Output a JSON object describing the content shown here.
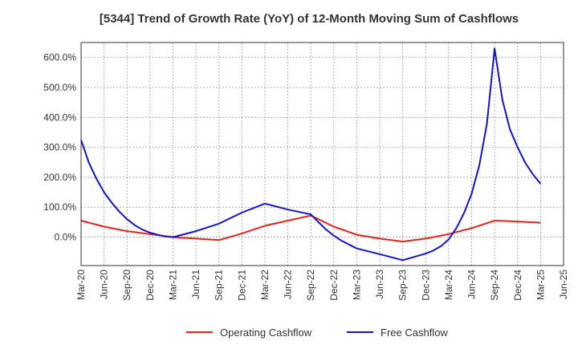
{
  "chart_data": {
    "type": "line",
    "title": "[5344]  Trend of Growth Rate (YoY) of 12-Month Moving Sum of Cashflows",
    "xlabel": "",
    "ylabel": "",
    "ylim": [
      -95,
      650
    ],
    "yticks": [
      0,
      100,
      200,
      300,
      400,
      500,
      600
    ],
    "ytick_labels": [
      "0.0%",
      "100.0%",
      "200.0%",
      "300.0%",
      "400.0%",
      "500.0%",
      "600.0%"
    ],
    "x_start": "Mar-20",
    "x_months": 63,
    "xtick_labels": [
      "Mar-20",
      "Jun-20",
      "Sep-20",
      "Dec-20",
      "Mar-21",
      "Jun-21",
      "Sep-21",
      "Dec-21",
      "Mar-22",
      "Jun-22",
      "Sep-22",
      "Dec-22",
      "Mar-23",
      "Jun-23",
      "Sep-23",
      "Dec-23",
      "Mar-24",
      "Jun-24",
      "Sep-24",
      "Dec-24",
      "Mar-25",
      "Jun-25"
    ],
    "grid": true,
    "legend_position": "bottom",
    "series": [
      {
        "name": "Operating Cashflow",
        "color": "#e8231e",
        "values": [
          [
            0,
            55
          ],
          [
            3,
            35
          ],
          [
            6,
            20
          ],
          [
            9,
            10
          ],
          [
            12,
            0
          ],
          [
            15,
            -5
          ],
          [
            18,
            -10
          ],
          [
            21,
            12
          ],
          [
            24,
            38
          ],
          [
            27,
            55
          ],
          [
            30,
            72
          ],
          [
            33,
            35
          ],
          [
            36,
            8
          ],
          [
            39,
            -5
          ],
          [
            42,
            -15
          ],
          [
            45,
            -5
          ],
          [
            48,
            10
          ],
          [
            51,
            30
          ],
          [
            54,
            55
          ],
          [
            57,
            52
          ],
          [
            60,
            48
          ]
        ]
      },
      {
        "name": "Free Cashflow",
        "color": "#1515c8",
        "values": [
          [
            0,
            325
          ],
          [
            1,
            250
          ],
          [
            2,
            195
          ],
          [
            3,
            150
          ],
          [
            4,
            115
          ],
          [
            5,
            85
          ],
          [
            6,
            60
          ],
          [
            7,
            40
          ],
          [
            8,
            25
          ],
          [
            9,
            15
          ],
          [
            10,
            8
          ],
          [
            11,
            2
          ],
          [
            12,
            0
          ],
          [
            15,
            20
          ],
          [
            18,
            45
          ],
          [
            21,
            82
          ],
          [
            24,
            112
          ],
          [
            27,
            92
          ],
          [
            30,
            76
          ],
          [
            31,
            50
          ],
          [
            32,
            25
          ],
          [
            33,
            5
          ],
          [
            34,
            -12
          ],
          [
            36,
            -38
          ],
          [
            39,
            -57
          ],
          [
            42,
            -77
          ],
          [
            45,
            -55
          ],
          [
            46,
            -45
          ],
          [
            47,
            -30
          ],
          [
            48,
            -8
          ],
          [
            49,
            30
          ],
          [
            50,
            80
          ],
          [
            51,
            145
          ],
          [
            52,
            240
          ],
          [
            53,
            380
          ],
          [
            54,
            630
          ],
          [
            55,
            460
          ],
          [
            56,
            360
          ],
          [
            57,
            300
          ],
          [
            58,
            248
          ],
          [
            59,
            210
          ],
          [
            60,
            178
          ]
        ]
      }
    ]
  }
}
